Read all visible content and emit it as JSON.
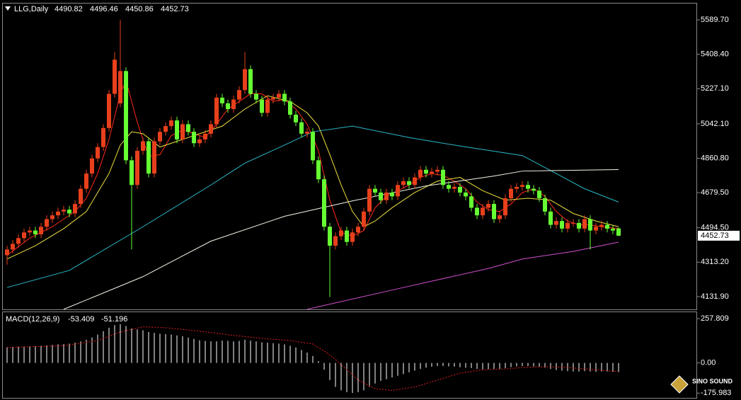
{
  "chart_data": [
    {
      "type": "candlestick",
      "title": "LLG,Daily",
      "open": [
        4350,
        4380,
        4410,
        4440,
        4470,
        4480,
        4460,
        4500,
        4540,
        4560,
        4580,
        4590,
        4570,
        4620,
        4700,
        4780,
        4860,
        4920,
        5020,
        5200,
        5150,
        5320,
        4850,
        4720,
        4900,
        4950,
        4780,
        4950,
        5000,
        5030,
        5060,
        4960,
        5040,
        5000,
        4940,
        4960,
        4990,
        5040,
        5180,
        5150,
        5120,
        5170,
        5220,
        5330,
        5200,
        5170,
        5100,
        5170,
        5180,
        5200,
        5160,
        5090,
        5050,
        4990,
        5000,
        4850,
        4750,
        4500,
        4400,
        4450,
        4480,
        4420,
        4470,
        4500,
        4580,
        4700,
        4680,
        4640,
        4680,
        4660,
        4720,
        4740,
        4720,
        4760,
        4800,
        4780,
        4790,
        4800,
        4720,
        4700,
        4710,
        4680,
        4660,
        4600,
        4560,
        4600,
        4620,
        4540,
        4560,
        4650,
        4700,
        4710,
        4720,
        4700,
        4690,
        4650,
        4580,
        4510,
        4530,
        4490,
        4520,
        4520,
        4490,
        4540,
        4480,
        4500,
        4510,
        4490,
        4490.82
      ],
      "high": [
        4400,
        4430,
        4460,
        4490,
        4500,
        4500,
        4520,
        4560,
        4580,
        4600,
        4610,
        4610,
        4640,
        4720,
        4800,
        4880,
        4940,
        5040,
        5220,
        5420,
        5590,
        5340,
        4870,
        4920,
        4970,
        4970,
        4970,
        5020,
        5050,
        5080,
        5080,
        5060,
        5060,
        5020,
        4980,
        5010,
        5060,
        5200,
        5200,
        5170,
        5190,
        5240,
        5420,
        5350,
        5220,
        5190,
        5190,
        5200,
        5220,
        5220,
        5180,
        5110,
        5070,
        5020,
        5020,
        4870,
        4770,
        4520,
        4470,
        4500,
        4500,
        4490,
        4520,
        4600,
        4720,
        4720,
        4700,
        4700,
        4700,
        4740,
        4760,
        4760,
        4780,
        4820,
        4820,
        4810,
        4820,
        4820,
        4740,
        4730,
        4730,
        4700,
        4680,
        4620,
        4620,
        4640,
        4640,
        4580,
        4670,
        4720,
        4730,
        4740,
        4740,
        4720,
        4710,
        4670,
        4600,
        4550,
        4550,
        4540,
        4540,
        4540,
        4560,
        4560,
        4520,
        4530,
        4530,
        4510,
        4496.46
      ],
      "low": [
        4300,
        4360,
        4390,
        4420,
        4450,
        4440,
        4440,
        4480,
        4520,
        4540,
        4560,
        4550,
        4550,
        4600,
        4680,
        4760,
        4840,
        4900,
        5000,
        5180,
        5130,
        4830,
        4380,
        4700,
        4880,
        4760,
        4760,
        4930,
        4980,
        5010,
        4940,
        4940,
        4980,
        4920,
        4920,
        4940,
        4970,
        5020,
        5130,
        5100,
        5100,
        5150,
        5200,
        5180,
        5150,
        5080,
        5080,
        5150,
        5160,
        5140,
        5070,
        5030,
        4970,
        4970,
        4830,
        4730,
        4480,
        4130,
        4380,
        4430,
        4400,
        4400,
        4450,
        4480,
        4560,
        4660,
        4620,
        4620,
        4640,
        4640,
        4700,
        4700,
        4700,
        4740,
        4760,
        4760,
        4770,
        4700,
        4680,
        4680,
        4660,
        4640,
        4580,
        4540,
        4540,
        4580,
        4520,
        4520,
        4540,
        4630,
        4680,
        4690,
        4680,
        4670,
        4630,
        4560,
        4490,
        4490,
        4470,
        4470,
        4500,
        4470,
        4470,
        4380,
        4460,
        4480,
        4470,
        4460,
        4450.86
      ],
      "close": [
        4380,
        4410,
        4440,
        4470,
        4480,
        4460,
        4500,
        4540,
        4560,
        4580,
        4590,
        4570,
        4620,
        4700,
        4780,
        4860,
        4920,
        5020,
        5200,
        5380,
        5320,
        4850,
        4720,
        4900,
        4950,
        4780,
        4950,
        5000,
        5030,
        5060,
        4960,
        5040,
        5000,
        4940,
        4960,
        4990,
        5040,
        5180,
        5150,
        5120,
        5170,
        5220,
        5330,
        5200,
        5170,
        5100,
        5170,
        5180,
        5200,
        5160,
        5090,
        5050,
        4990,
        5000,
        4850,
        4750,
        4500,
        4400,
        4450,
        4480,
        4420,
        4470,
        4500,
        4580,
        4700,
        4680,
        4640,
        4680,
        4660,
        4720,
        4740,
        4720,
        4760,
        4800,
        4780,
        4790,
        4800,
        4720,
        4700,
        4710,
        4680,
        4660,
        4600,
        4560,
        4600,
        4620,
        4540,
        4560,
        4650,
        4700,
        4710,
        4720,
        4700,
        4690,
        4650,
        4580,
        4510,
        4530,
        4490,
        4520,
        4520,
        4490,
        4540,
        4480,
        4500,
        4510,
        4490,
        4480,
        4452.73
      ],
      "up_color": "#e8401c",
      "down_color": "#66ff33",
      "overlays": [
        {
          "color": "#ff2a1a",
          "x": [
            0,
            4,
            8,
            12,
            14,
            16,
            18,
            20,
            21,
            23,
            25,
            27,
            29,
            31,
            33,
            35,
            37,
            39,
            41,
            43,
            45,
            47,
            49,
            51,
            53,
            55,
            57,
            59,
            61,
            63,
            65,
            67,
            69,
            71,
            73,
            75,
            77,
            79,
            81,
            83,
            85,
            87,
            89,
            91,
            93,
            95,
            97,
            99,
            101,
            103,
            105,
            108
          ],
          "values": [
            4350,
            4440,
            4500,
            4580,
            4650,
            4780,
            4960,
            5200,
            5270,
            5050,
            4870,
            4880,
            4980,
            5010,
            4990,
            4970,
            5040,
            5120,
            5160,
            5200,
            5200,
            5160,
            5170,
            5120,
            5040,
            4900,
            4640,
            4470,
            4450,
            4480,
            4600,
            4660,
            4690,
            4720,
            4760,
            4780,
            4770,
            4740,
            4700,
            4630,
            4590,
            4580,
            4620,
            4680,
            4700,
            4660,
            4580,
            4530,
            4510,
            4510,
            4500,
            4490
          ]
        },
        {
          "color": "#f0e040",
          "x": [
            0,
            5,
            10,
            14,
            18,
            20,
            22,
            24,
            27,
            30,
            34,
            38,
            42,
            46,
            50,
            53,
            55,
            57,
            59,
            61,
            63,
            65,
            68,
            72,
            76,
            80,
            84,
            88,
            92,
            96,
            100,
            104,
            108
          ],
          "values": [
            4330,
            4400,
            4490,
            4580,
            4780,
            4930,
            5000,
            4990,
            4920,
            4950,
            4990,
            5030,
            5120,
            5190,
            5160,
            5100,
            5030,
            4880,
            4720,
            4580,
            4500,
            4530,
            4600,
            4680,
            4740,
            4760,
            4690,
            4640,
            4650,
            4640,
            4570,
            4530,
            4500
          ]
        },
        {
          "color": "#2ab8c8",
          "x": [
            0,
            11,
            24,
            36,
            42,
            49,
            54,
            61,
            71,
            80,
            91,
            97,
            102,
            108
          ],
          "values": [
            4180,
            4270,
            4500,
            4720,
            4835,
            4930,
            5000,
            5030,
            4970,
            4925,
            4875,
            4780,
            4700,
            4630
          ]
        },
        {
          "color": "#f4f4e8",
          "x": [
            10,
            24,
            36,
            49,
            61,
            74,
            86,
            91,
            108
          ],
          "values": [
            4065,
            4237,
            4424,
            4555,
            4636,
            4715,
            4767,
            4793,
            4801
          ]
        },
        {
          "color": "#d050d0",
          "x": [
            53,
            70,
            85,
            91,
            100,
            108
          ],
          "values": [
            4065,
            4180,
            4280,
            4330,
            4370,
            4419
          ]
        }
      ],
      "ylim": [
        4064.6,
        5675.7
      ],
      "yticks": [
        {
          "value": 5589.7,
          "label": "5589.70"
        },
        {
          "value": 5408.4,
          "label": "5408.40"
        },
        {
          "value": 5227.1,
          "label": "5227.10"
        },
        {
          "value": 5042.1,
          "label": "5042.10"
        },
        {
          "value": 4860.8,
          "label": "4860.80"
        },
        {
          "value": 4679.5,
          "label": "4679.50"
        },
        {
          "value": 4494.5,
          "label": "4494.50"
        },
        {
          "value": 4313.2,
          "label": "4313.20"
        },
        {
          "value": 4131.9,
          "label": "4131.90"
        }
      ]
    },
    {
      "type": "macd",
      "title": "MACD(12,26,9)",
      "color": "#ffffff",
      "values": [
        90,
        92,
        95,
        95,
        96,
        98,
        100,
        102,
        105,
        108,
        110,
        112,
        118,
        125,
        135,
        148,
        165,
        185,
        205,
        220,
        225,
        215,
        200,
        195,
        190,
        180,
        175,
        170,
        168,
        165,
        160,
        155,
        148,
        140,
        132,
        128,
        125,
        125,
        130,
        128,
        125,
        128,
        135,
        130,
        125,
        120,
        118,
        115,
        112,
        108,
        100,
        90,
        75,
        60,
        40,
        10,
        -40,
        -100,
        -140,
        -160,
        -170,
        -175,
        -170,
        -160,
        -140,
        -120,
        -105,
        -95,
        -85,
        -75,
        -65,
        -55,
        -45,
        -35,
        -28,
        -22,
        -18,
        -18,
        -20,
        -22,
        -25,
        -28,
        -30,
        -35,
        -38,
        -36,
        -35,
        -35,
        -30,
        -25,
        -20,
        -18,
        -18,
        -20,
        -22,
        -28,
        -35,
        -42,
        -45,
        -48,
        -50,
        -50,
        -48,
        -50,
        -52,
        -50,
        -50,
        -52,
        -53.409
      ],
      "signal": {
        "color": "#e02020",
        "x": [
          0,
          10,
          16,
          20,
          24,
          28,
          34,
          40,
          46,
          50,
          54,
          56,
          58,
          60,
          62,
          65,
          68,
          72,
          76,
          80,
          84,
          88,
          92,
          96,
          100,
          104,
          108
        ],
        "values": [
          90,
          100,
          130,
          180,
          210,
          205,
          185,
          160,
          140,
          130,
          110,
          70,
          20,
          -40,
          -100,
          -150,
          -160,
          -140,
          -100,
          -60,
          -40,
          -35,
          -25,
          -22,
          -30,
          -40,
          -51.196
        ]
      },
      "ylim": [
        -203.7,
        295.2
      ],
      "yticks": [
        257.809,
        {
          "value": 0,
          "label": "0.00"
        },
        -175.983
      ]
    }
  ],
  "logo_text": "SINO SOUND"
}
